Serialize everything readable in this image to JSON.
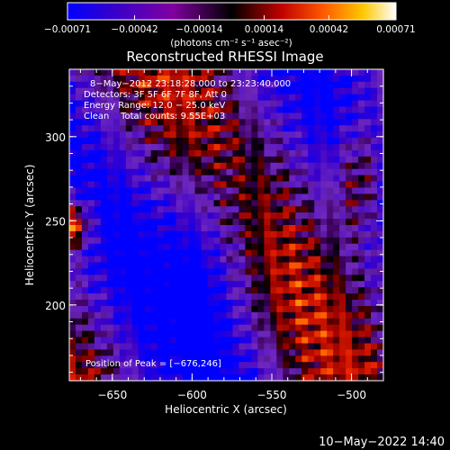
{
  "chart_data": {
    "type": "heatmap",
    "title": "Reconstructed RHESSI Image",
    "xlabel": "Heliocentric X (arcsec)",
    "ylabel": "Heliocentric Y (arcsec)",
    "xlim": [
      -677,
      -480
    ],
    "ylim": [
      155,
      340
    ],
    "x_ticks": [
      -650,
      -600,
      -550,
      -500
    ],
    "x_tick_labels": [
      "−650",
      "−600",
      "−550",
      "−500"
    ],
    "y_ticks": [
      200,
      250,
      300
    ],
    "y_tick_labels": [
      "200",
      "250",
      "300"
    ],
    "colorbar": {
      "ticks": [
        -0.00071,
        -0.00042,
        -0.00014,
        0.00014,
        0.00042,
        0.00071
      ],
      "tick_labels": [
        "−0.00071",
        "−0.00042",
        "−0.00014",
        "0.00014",
        "0.00042",
        "0.00071"
      ],
      "unit_label": "(photons cm⁻² s⁻¹ asec⁻²)",
      "colors": [
        "#0000ff",
        "#3b00c8",
        "#8000a0",
        "#000000",
        "#c00000",
        "#ff5a00",
        "#ffc800",
        "#ffffff"
      ]
    },
    "annotations": [
      "8−May−2012 23:18:28.000 to 23:23:40.000",
      "Detectors: 3F 5F 6F 7F 8F, Att 0",
      "Energy Range: 12.0 − 25.0 keV",
      "Clean    Total counts: 9.55E+03"
    ],
    "peak_label": "Position of Peak = [−676,246]",
    "grid": false,
    "legend": "none"
  },
  "footer": {
    "timestamp": "10−May−2022 14:40"
  }
}
